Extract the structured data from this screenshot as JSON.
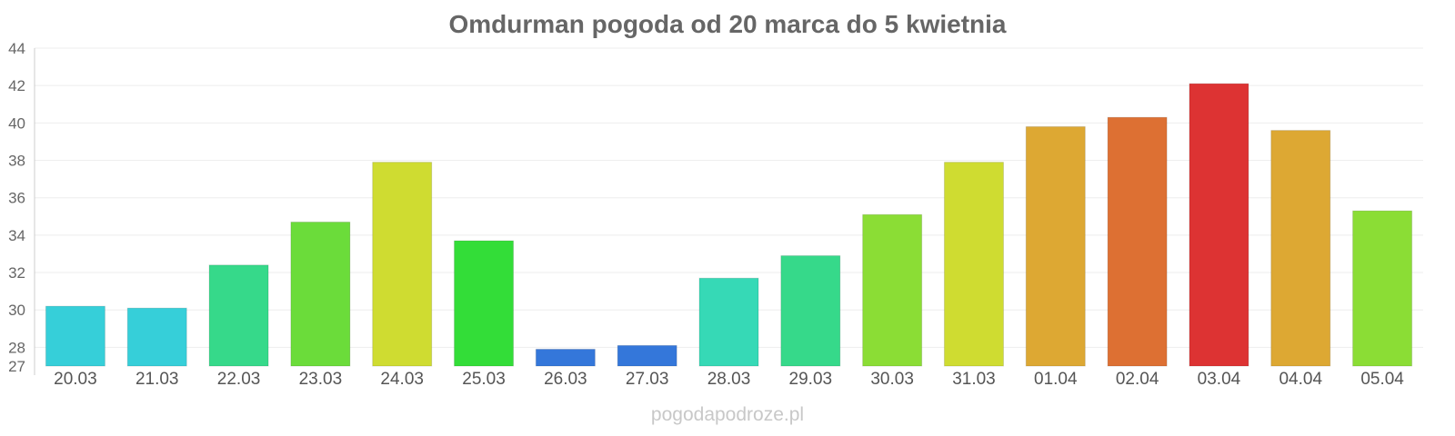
{
  "chart_data": {
    "type": "bar",
    "title": "Omdurman pogoda od 20 marca do 5 kwietnia",
    "xlabel": "",
    "ylabel": "",
    "categories": [
      "20.03",
      "21.03",
      "22.03",
      "23.03",
      "24.03",
      "25.03",
      "26.03",
      "27.03",
      "28.03",
      "29.03",
      "30.03",
      "31.03",
      "01.04",
      "02.04",
      "03.04",
      "04.04",
      "05.04"
    ],
    "values": [
      30.2,
      30.1,
      32.4,
      34.7,
      37.9,
      33.7,
      27.9,
      28.1,
      31.7,
      32.9,
      35.1,
      37.9,
      39.8,
      40.3,
      42.1,
      39.6,
      35.3
    ],
    "bar_colors": [
      "#36cfd9",
      "#36cfd9",
      "#36d98a",
      "#6bdc3a",
      "#cfdc31",
      "#33dd38",
      "#3477da",
      "#3477da",
      "#36d9b6",
      "#36d98a",
      "#8bdd35",
      "#cfdc31",
      "#dda833",
      "#dd7033",
      "#dd3333",
      "#dda833",
      "#8bdd35"
    ],
    "ylim": [
      27,
      44
    ],
    "yticks": [
      27,
      28,
      30,
      32,
      34,
      36,
      38,
      40,
      42,
      44
    ],
    "grid": true,
    "legend": "none"
  },
  "watermark": "pogodapodroze.pl"
}
